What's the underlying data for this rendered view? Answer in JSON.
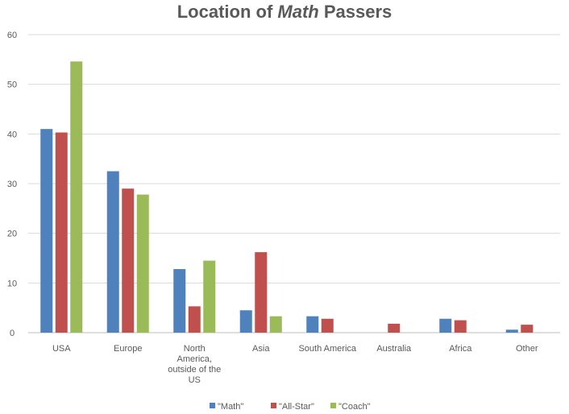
{
  "chart_data": {
    "type": "bar",
    "title_parts": [
      "Location of ",
      "Math",
      " Passers"
    ],
    "categories": [
      [
        "USA"
      ],
      [
        "Europe"
      ],
      [
        "North",
        "America,",
        "outside of the",
        "US"
      ],
      [
        "Asia"
      ],
      [
        "South America"
      ],
      [
        "Australia"
      ],
      [
        "Africa"
      ],
      [
        "Other"
      ]
    ],
    "series": [
      {
        "name": "\"Math\"",
        "color": "#4f81bd",
        "values": [
          41,
          32.5,
          12.8,
          4.5,
          3.3,
          0,
          2.8,
          0.6
        ]
      },
      {
        "name": "\"All-Star\"",
        "color": "#c0504d",
        "values": [
          40.3,
          29,
          5.3,
          16.2,
          2.8,
          1.8,
          2.5,
          1.6
        ]
      },
      {
        "name": "\"Coach\"",
        "color": "#9bbb59",
        "values": [
          54.6,
          27.8,
          14.5,
          3.3,
          0,
          0,
          0,
          0
        ]
      }
    ],
    "ylim": [
      0,
      60
    ],
    "yticks": [
      0,
      10,
      20,
      30,
      40,
      50,
      60
    ],
    "grid": true,
    "legend_position": "bottom"
  }
}
